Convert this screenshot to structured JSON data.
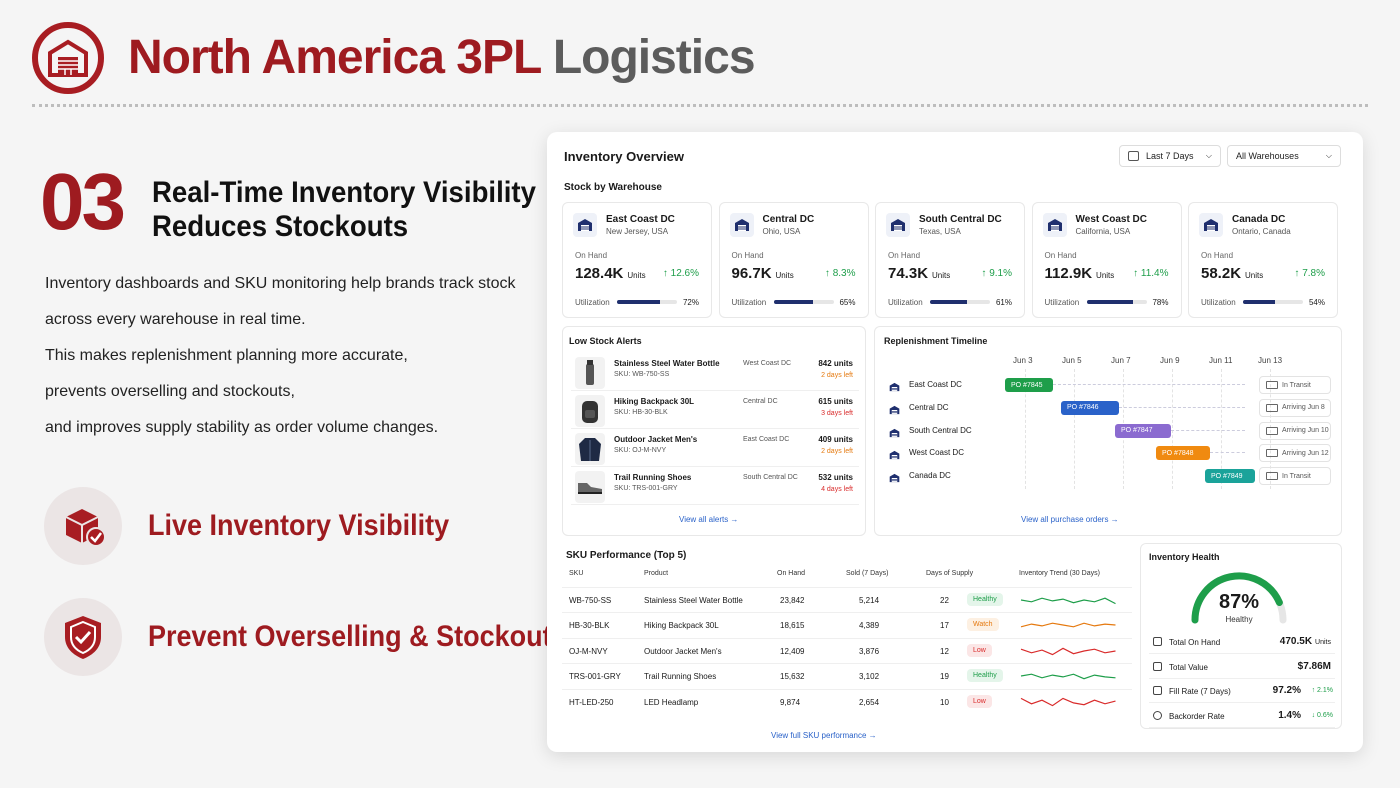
{
  "header": {
    "title_main": "North America 3PL",
    "title_accent": "Logistics"
  },
  "left": {
    "number": "03",
    "heading_line1": "Real-Time Inventory Visibility",
    "heading_line2": "Reduces Stockouts",
    "body_lines": [
      "Inventory dashboards and SKU monitoring help brands track stock",
      "across every warehouse in real time.",
      "This makes replenishment planning more accurate,",
      "prevents overselling and stockouts,",
      "and improves supply stability as order volume changes."
    ],
    "features": [
      "Live Inventory Visibility",
      "Prevent Overselling & Stockouts"
    ]
  },
  "dashboard": {
    "title": "Inventory Overview",
    "date_filter": "Last 7 Days",
    "warehouse_filter": "All Warehouses",
    "stock_title": "Stock by Warehouse",
    "labels": {
      "on_hand": "On Hand",
      "units": "Units",
      "utilization": "Utilization"
    },
    "warehouses": [
      {
        "name": "East Coast DC",
        "loc": "New Jersey, USA",
        "value": "128.4K",
        "change": "↑ 12.6%",
        "util": "72%",
        "util_pct": 72
      },
      {
        "name": "Central DC",
        "loc": "Ohio, USA",
        "value": "96.7K",
        "change": "↑ 8.3%",
        "util": "65%",
        "util_pct": 65
      },
      {
        "name": "South Central DC",
        "loc": "Texas, USA",
        "value": "74.3K",
        "change": "↑ 9.1%",
        "util": "61%",
        "util_pct": 61
      },
      {
        "name": "West Coast DC",
        "loc": "California, USA",
        "value": "112.9K",
        "change": "↑ 11.4%",
        "util": "78%",
        "util_pct": 78
      },
      {
        "name": "Canada DC",
        "loc": "Ontario, Canada",
        "value": "58.2K",
        "change": "↑ 7.8%",
        "util": "54%",
        "util_pct": 54
      }
    ],
    "alerts": {
      "title": "Low Stock Alerts",
      "items": [
        {
          "name": "Stainless Steel Water Bottle",
          "sku": "SKU: WB-750-SS",
          "wh": "West Coast DC",
          "units": "842 units",
          "days": "2 days left",
          "color": "#e5790f"
        },
        {
          "name": "Hiking Backpack 30L",
          "sku": "SKU: HB-30-BLK",
          "wh": "Central DC",
          "units": "615 units",
          "days": "3 days left",
          "color": "#d92b2b"
        },
        {
          "name": "Outdoor Jacket Men's",
          "sku": "SKU: OJ-M-NVY",
          "wh": "East Coast DC",
          "units": "409 units",
          "days": "2 days left",
          "color": "#e5790f"
        },
        {
          "name": "Trail Running Shoes",
          "sku": "SKU: TRS-001-GRY",
          "wh": "South Central DC",
          "units": "532 units",
          "days": "4 days left",
          "color": "#d92b2b"
        }
      ],
      "link": "View all alerts  →"
    },
    "timeline": {
      "title": "Replenishment Timeline",
      "dates": [
        "Jun 3",
        "Jun 5",
        "Jun 7",
        "Jun 9",
        "Jun 11",
        "Jun 13"
      ],
      "rows": [
        {
          "name": "East Coast DC",
          "po": "PO #7845",
          "color": "#1e9e4a",
          "status": "In Transit"
        },
        {
          "name": "Central DC",
          "po": "PO #7846",
          "color": "#2a62c9",
          "status": "Arriving Jun 8"
        },
        {
          "name": "South Central DC",
          "po": "PO #7847",
          "color": "#8b6bd0",
          "status": "Arriving Jun 10"
        },
        {
          "name": "West Coast DC",
          "po": "PO #7848",
          "color": "#f08a10",
          "status": "Arriving Jun 12"
        },
        {
          "name": "Canada DC",
          "po": "PO #7849",
          "color": "#1aa39a",
          "status": "In Transit"
        }
      ],
      "link": "View all purchase orders  →"
    },
    "sku": {
      "title": "SKU Performance (Top 5)",
      "headers": [
        "SKU",
        "Product",
        "On Hand",
        "Sold (7 Days)",
        "Days of Supply",
        "Inventory Trend (30 Days)"
      ],
      "rows": [
        {
          "sku": "WB-750-SS",
          "product": "Stainless Steel Water Bottle",
          "onhand": "23,842",
          "sold": "5,214",
          "days": "22",
          "status": "Healthy",
          "color": "#1e9e4a",
          "bg": "#e4f5ea"
        },
        {
          "sku": "HB-30-BLK",
          "product": "Hiking Backpack 30L",
          "onhand": "18,615",
          "sold": "4,389",
          "days": "17",
          "status": "Watch",
          "color": "#e5790f",
          "bg": "#fdf0e2"
        },
        {
          "sku": "OJ-M-NVY",
          "product": "Outdoor Jacket Men's",
          "onhand": "12,409",
          "sold": "3,876",
          "days": "12",
          "status": "Low",
          "color": "#d92b2b",
          "bg": "#fbe6e6"
        },
        {
          "sku": "TRS-001-GRY",
          "product": "Trail Running Shoes",
          "onhand": "15,632",
          "sold": "3,102",
          "days": "19",
          "status": "Healthy",
          "color": "#1e9e4a",
          "bg": "#e4f5ea"
        },
        {
          "sku": "HT-LED-250",
          "product": "LED Headlamp",
          "onhand": "9,874",
          "sold": "2,654",
          "days": "10",
          "status": "Low",
          "color": "#d92b2b",
          "bg": "#fbe6e6"
        }
      ],
      "link": "View full SKU performance  →"
    },
    "health": {
      "title": "Inventory Health",
      "score": "87%",
      "score_value": 87,
      "label": "Healthy",
      "items": [
        {
          "label": "Total On Hand",
          "value": "470.5K",
          "unit": "Units",
          "delta": ""
        },
        {
          "label": "Total Value",
          "value": "$7.86M",
          "unit": "",
          "delta": ""
        },
        {
          "label": "Fill Rate (7 Days)",
          "value": "97.2%",
          "unit": "",
          "delta": "↑ 2.1%"
        },
        {
          "label": "Backorder Rate",
          "value": "1.4%",
          "unit": "",
          "delta": "↓ 0.6%"
        }
      ]
    }
  }
}
